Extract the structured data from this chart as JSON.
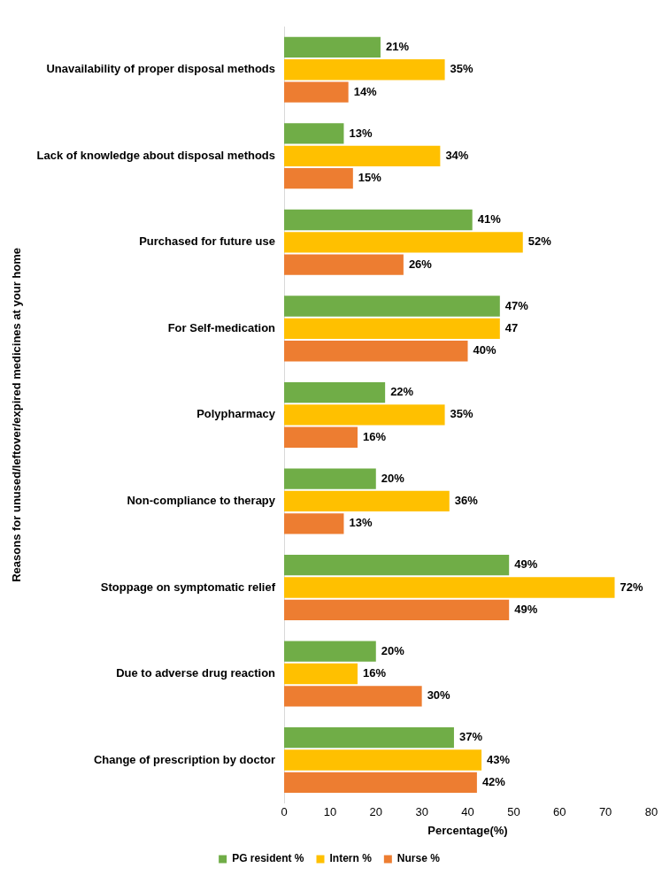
{
  "chart_data": {
    "type": "bar",
    "orientation": "horizontal",
    "categories": [
      "Unavailability of proper disposal methods",
      "Lack of knowledge about disposal methods",
      "Purchased for future use",
      "For Self-medication",
      "Polypharmacy",
      "Non-compliance to therapy",
      "Stoppage on symptomatic relief",
      "Due to adverse drug reaction",
      "Change of prescription by doctor"
    ],
    "series": [
      {
        "name": "PG resident %",
        "color": "#70ad47",
        "values": [
          21,
          13,
          41,
          47,
          22,
          20,
          49,
          20,
          37
        ],
        "value_labels": [
          "21%",
          "13%",
          "41%",
          "47%",
          "22%",
          "20%",
          "49%",
          "20%",
          "37%"
        ]
      },
      {
        "name": "Intern %",
        "color": "#ffc000",
        "values": [
          35,
          34,
          52,
          47,
          35,
          36,
          72,
          16,
          43
        ],
        "value_labels": [
          "35%",
          "34%",
          "52%",
          "47",
          "35%",
          "36%",
          "72%",
          "16%",
          "43%"
        ]
      },
      {
        "name": "Nurse %",
        "color": "#ed7d31",
        "values": [
          14,
          15,
          26,
          40,
          16,
          13,
          49,
          30,
          42
        ],
        "value_labels": [
          "14%",
          "15%",
          "26%",
          "40%",
          "16%",
          "13%",
          "49%",
          "30%",
          "42%"
        ]
      }
    ],
    "xlim": [
      0,
      80
    ],
    "xticks": [
      0,
      10,
      20,
      30,
      40,
      50,
      60,
      70,
      80
    ],
    "xlabel": "Percentage(%)",
    "ylabel": "Reasons for unused/leftover/expired medicines at your home",
    "grid": false,
    "legend": "bottom"
  }
}
